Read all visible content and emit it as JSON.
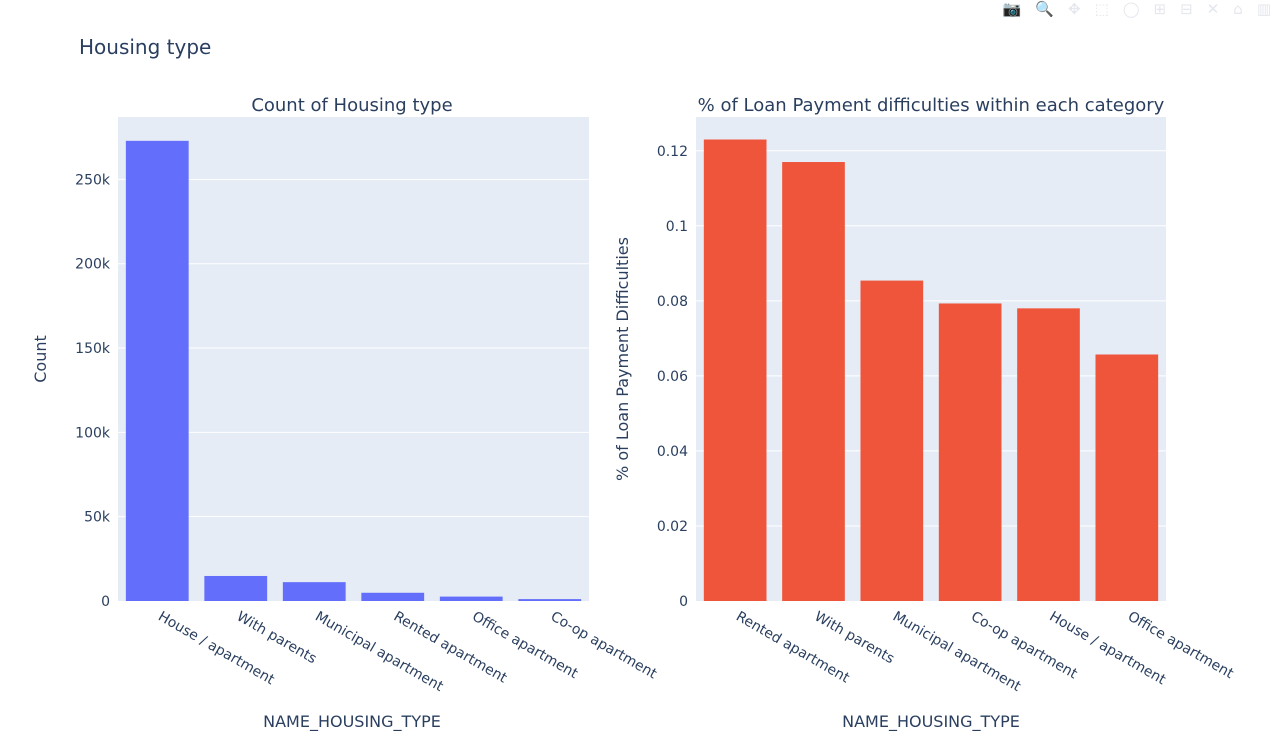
{
  "figure_title": "Housing type",
  "modebar": [
    {
      "name": "camera-icon",
      "glyph": "📷"
    },
    {
      "name": "zoom-icon",
      "glyph": "🔍"
    },
    {
      "name": "pan-icon",
      "glyph": "✥"
    },
    {
      "name": "box-select-icon",
      "glyph": "⬚"
    },
    {
      "name": "lasso-select-icon",
      "glyph": "◯"
    },
    {
      "name": "zoom-in-icon",
      "glyph": "⊞"
    },
    {
      "name": "zoom-out-icon",
      "glyph": "⊟"
    },
    {
      "name": "autoscale-icon",
      "glyph": "✕"
    },
    {
      "name": "reset-axes-icon",
      "glyph": "⌂"
    },
    {
      "name": "plotly-logo-icon",
      "glyph": "▥"
    }
  ],
  "chart_data": [
    {
      "type": "bar",
      "title": "Count of Housing type",
      "xlabel": "NAME_HOUSING_TYPE",
      "ylabel": "Count",
      "categories": [
        "House / apartment",
        "With parents",
        "Municipal apartment",
        "Rented apartment",
        "Office apartment",
        "Co-op apartment"
      ],
      "values": [
        272868,
        14840,
        11183,
        4881,
        2617,
        1122
      ],
      "ylim": [
        0,
        287000
      ],
      "yticks": [
        0,
        50000,
        100000,
        150000,
        200000,
        250000
      ],
      "ytick_labels": [
        "0",
        "50k",
        "100k",
        "150k",
        "200k",
        "250k"
      ],
      "color": "#636efa",
      "grid": true
    },
    {
      "type": "bar",
      "title": "% of Loan Payment difficulties within each category",
      "xlabel": "NAME_HOUSING_TYPE",
      "ylabel": "% of Loan Payment Difficulties",
      "categories": [
        "Rented apartment",
        "With parents",
        "Municipal apartment",
        "Co-op apartment",
        "House / apartment",
        "Office apartment"
      ],
      "values": [
        0.123,
        0.117,
        0.0854,
        0.0793,
        0.078,
        0.0657
      ],
      "ylim": [
        0,
        0.129
      ],
      "yticks": [
        0,
        0.02,
        0.04,
        0.06,
        0.08,
        0.1,
        0.12
      ],
      "ytick_labels": [
        "0",
        "0.02",
        "0.04",
        "0.06",
        "0.08",
        "0.1",
        "0.12"
      ],
      "color": "#ef553b",
      "grid": true
    }
  ]
}
